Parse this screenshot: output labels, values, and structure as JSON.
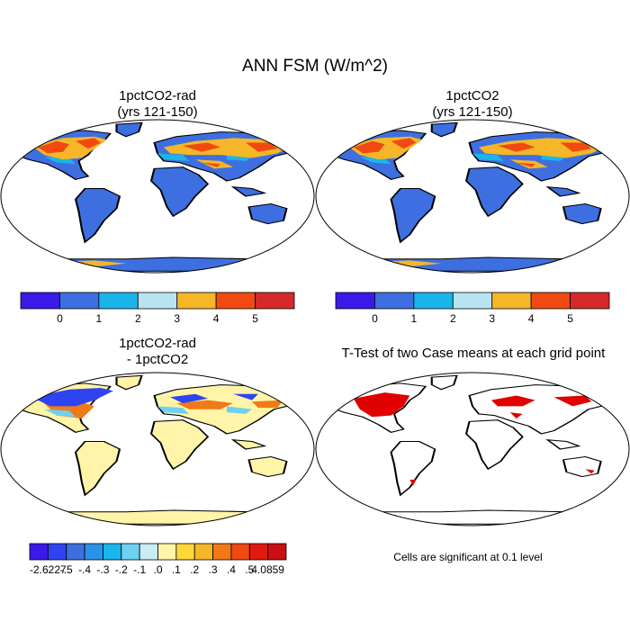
{
  "title": "ANN FSM (W/m^2)",
  "panels": [
    {
      "title_line1": "1pctCO2-rad",
      "title_line2": "(yrs 121-150)"
    },
    {
      "title_line1": "1pctCO2",
      "title_line2": "(yrs 121-150)"
    },
    {
      "title_line1": "1pctCO2-rad",
      "title_line2": "- 1pctCO2"
    },
    {
      "title_line1": "T-Test of two Case means at each grid point"
    }
  ],
  "colorbar_abs": {
    "colors": [
      "#3a1ae8",
      "#3e6fe0",
      "#1ab5ea",
      "#b8e4f2",
      "#f5b628",
      "#f04a12",
      "#d42a2a"
    ],
    "labels": [
      "0",
      "1",
      "2",
      "3",
      "4",
      "5"
    ]
  },
  "colorbar_diff": {
    "colors": [
      "#3a1ae8",
      "#2f44f0",
      "#3e6fe0",
      "#2a93e8",
      "#1ab5ea",
      "#6fd0f2",
      "#c9ecf5",
      "#fff4a8",
      "#ffd73a",
      "#f5b628",
      "#f07a18",
      "#f04a12",
      "#e01a10",
      "#c81010"
    ],
    "labels": [
      "-2.6227",
      "-.5",
      "-.4",
      "-.3",
      "-.2",
      "-.1",
      ".0",
      ".1",
      ".2",
      ".3",
      ".4",
      ".5",
      "4.0859"
    ]
  },
  "significance_note": "Cells are significant at 0.1 level",
  "map_colors": {
    "ocean": "#ffffff",
    "land_low": "#3e6fe0",
    "diff_neutral": "#fff4a8",
    "significant": "#e00000"
  }
}
